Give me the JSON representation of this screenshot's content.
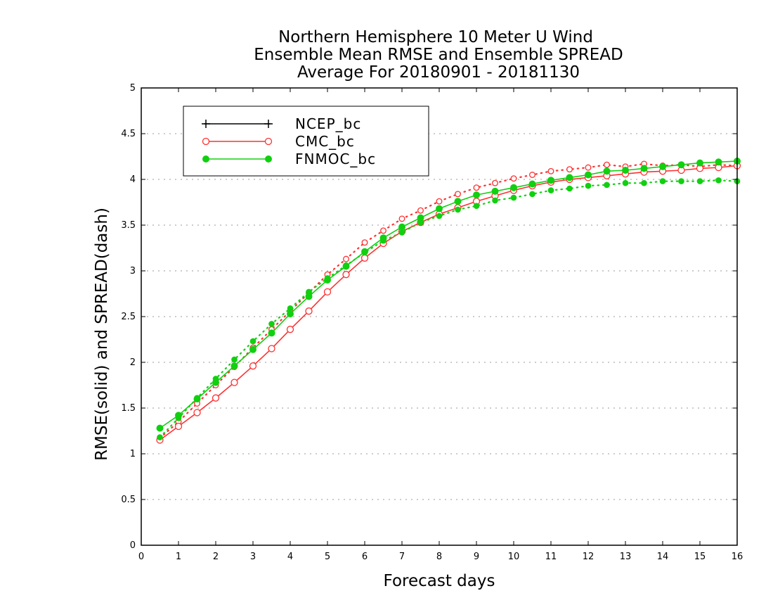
{
  "chart_data": {
    "type": "line",
    "title": [
      "Northern Hemisphere 10 Meter U Wind",
      "Ensemble Mean RMSE and Ensemble SPREAD",
      "Average For 20180901 - 20181130"
    ],
    "xlabel": "Forecast days",
    "ylabel": "RMSE(solid) and SPREAD(dash)",
    "xlim": [
      0,
      16
    ],
    "ylim": [
      0,
      5
    ],
    "xticks": [
      0,
      1,
      2,
      3,
      4,
      5,
      6,
      7,
      8,
      9,
      10,
      11,
      12,
      13,
      14,
      15,
      16
    ],
    "yticks": [
      0,
      0.5,
      1,
      1.5,
      2,
      2.5,
      3,
      3.5,
      4,
      4.5,
      5
    ],
    "grid": true,
    "legend_position": "top-left",
    "x": [
      0.5,
      1,
      1.5,
      2,
      2.5,
      3,
      3.5,
      4,
      4.5,
      5,
      5.5,
      6,
      6.5,
      7,
      7.5,
      8,
      8.5,
      9,
      9.5,
      10,
      10.5,
      11,
      11.5,
      12,
      12.5,
      13,
      13.5,
      14,
      14.5,
      15,
      15.5,
      16
    ],
    "series": [
      {
        "name": "NCEP_bc",
        "color": "#000000",
        "marker": "plus",
        "rmse": [],
        "spread": []
      },
      {
        "name": "CMC_bc",
        "color": "#ff3030",
        "marker": "open-circle",
        "rmse": [
          1.15,
          1.3,
          1.45,
          1.61,
          1.78,
          1.96,
          2.15,
          2.36,
          2.56,
          2.77,
          2.96,
          3.14,
          3.3,
          3.43,
          3.53,
          3.62,
          3.69,
          3.76,
          3.82,
          3.88,
          3.93,
          3.97,
          4.0,
          4.02,
          4.04,
          4.06,
          4.08,
          4.09,
          4.1,
          4.12,
          4.13,
          4.15
        ],
        "spread": [
          1.17,
          1.35,
          1.55,
          1.75,
          1.95,
          2.16,
          2.36,
          2.56,
          2.76,
          2.96,
          3.13,
          3.31,
          3.44,
          3.57,
          3.66,
          3.76,
          3.84,
          3.91,
          3.96,
          4.01,
          4.05,
          4.09,
          4.11,
          4.13,
          4.16,
          4.14,
          4.17,
          4.15,
          4.16,
          4.14,
          4.16,
          4.15
        ]
      },
      {
        "name": "FNMOC_bc",
        "color": "#10d010",
        "marker": "filled-circle",
        "rmse": [
          1.28,
          1.42,
          1.6,
          1.78,
          1.96,
          2.14,
          2.32,
          2.53,
          2.72,
          2.9,
          3.05,
          3.21,
          3.36,
          3.48,
          3.58,
          3.68,
          3.76,
          3.83,
          3.87,
          3.91,
          3.95,
          3.99,
          4.02,
          4.05,
          4.09,
          4.1,
          4.12,
          4.14,
          4.16,
          4.18,
          4.19,
          4.2
        ],
        "spread": [
          1.18,
          1.39,
          1.61,
          1.82,
          2.03,
          2.23,
          2.42,
          2.59,
          2.77,
          2.92,
          3.06,
          3.2,
          3.33,
          3.42,
          3.53,
          3.6,
          3.67,
          3.71,
          3.77,
          3.8,
          3.84,
          3.88,
          3.9,
          3.93,
          3.94,
          3.96,
          3.96,
          3.98,
          3.98,
          3.98,
          3.99,
          3.98
        ]
      }
    ]
  }
}
